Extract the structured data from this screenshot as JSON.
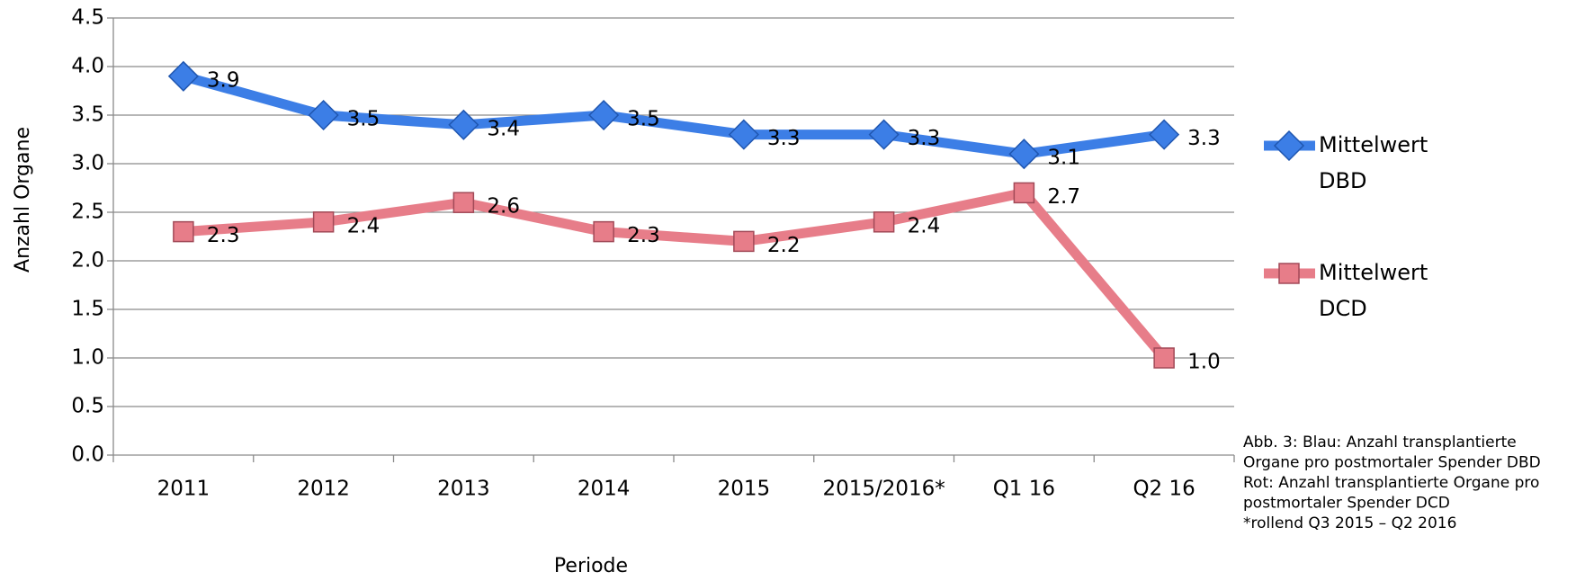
{
  "chart_data": {
    "type": "line",
    "x_label": "Periode",
    "y_label": "Anzahl Organe",
    "categories": [
      "2011",
      "2012",
      "2013",
      "2014",
      "2015",
      "2015/2016*",
      "Q1 16",
      "Q2 16"
    ],
    "series": [
      {
        "name": "Mittelwert DBD",
        "color": "#3c7ee6",
        "marker": "diamond",
        "values": [
          3.9,
          3.5,
          3.4,
          3.5,
          3.3,
          3.3,
          3.1,
          3.3
        ],
        "value_labels": [
          "3.9",
          "3.5",
          "3.4",
          "3.5",
          "3.3",
          "3.3",
          "3.1",
          "3.3"
        ]
      },
      {
        "name": "Mittelwert DCD",
        "color": "#e77d89",
        "marker": "square",
        "values": [
          2.3,
          2.4,
          2.6,
          2.3,
          2.2,
          2.4,
          2.7,
          1.0
        ],
        "value_labels": [
          "2.3",
          "2.4",
          "2.6",
          "2.3",
          "2.2",
          "2.4",
          "2.7",
          "1.0"
        ]
      }
    ],
    "ylim": [
      0,
      4.5
    ],
    "yticks": [
      {
        "value": 0,
        "label": "0.0"
      },
      0.5,
      {
        "value": 1,
        "label": "1.0"
      },
      1.5,
      {
        "value": 2,
        "label": "2.0"
      },
      2.5,
      {
        "value": 3,
        "label": "3.0"
      },
      3.5,
      {
        "value": 4,
        "label": "4.0"
      },
      4.5
    ],
    "grid": true,
    "legend": "right",
    "note": [
      "Abb. 3: Blau: Anzahl transplantierte",
      "Organe pro postmortaler Spender DBD",
      "Rot: Anzahl transplantierte Organe pro",
      "postmortaler Spender DCD",
      "*rollend Q3 2015 – Q2 2016"
    ]
  }
}
